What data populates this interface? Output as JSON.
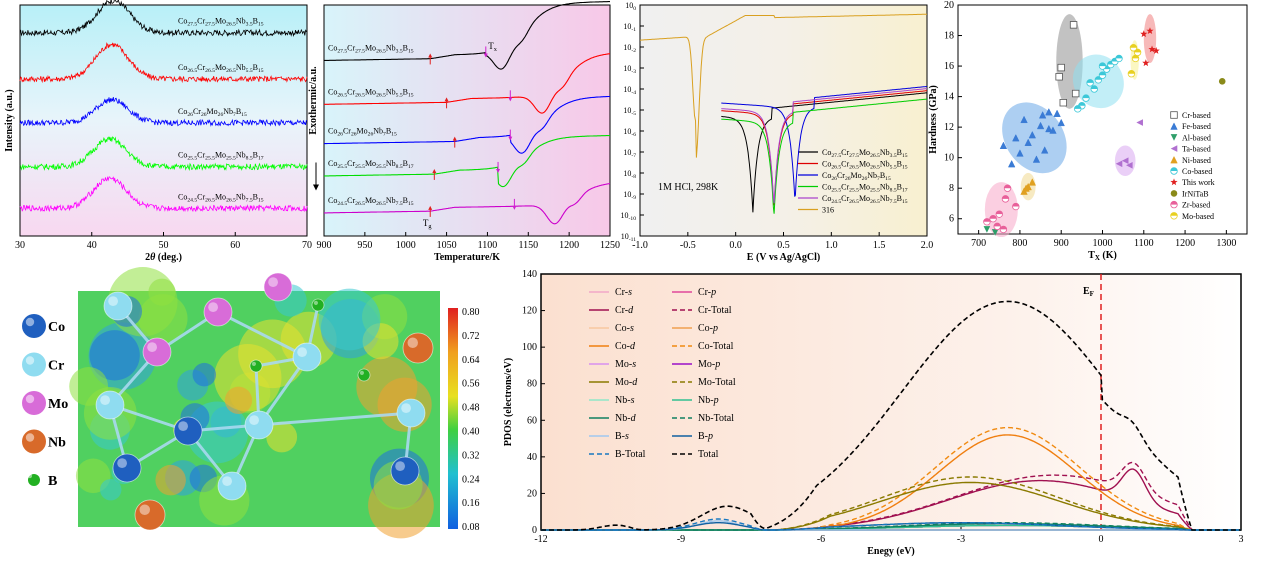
{
  "chart_data": [
    {
      "id": "xrd",
      "type": "line",
      "xlabel": "2θ (deg.)",
      "ylabel": "Intensity (a.u.)",
      "xlim": [
        30,
        70
      ],
      "xticks": [
        "30",
        "40",
        "50",
        "60",
        "70"
      ],
      "series": [
        {
          "name": "Co27.5Cr27.5Mo26.5Nb3.5B15",
          "label": [
            "Co",
            "27.5",
            "Cr",
            "27.5",
            "Mo",
            "26.5",
            "Nb",
            "3.5",
            "B",
            "15"
          ],
          "color": "#000000",
          "peak": 43,
          "base": 0.88,
          "amp": 0.14
        },
        {
          "name": "Co26.5Cr26.5Mo26.5Nb5.5B15",
          "label": [
            "Co",
            "26.5",
            "Cr",
            "26.5",
            "Mo",
            "26.5",
            "Nb",
            "5.5",
            "B",
            "15"
          ],
          "color": "#ff0000",
          "peak": 42.8,
          "base": 0.68,
          "amp": 0.15
        },
        {
          "name": "Co26Cr26Mo26Nb7B15",
          "label": [
            "Co",
            "26",
            "Cr",
            "26",
            "Mo",
            "26",
            "Nb",
            "7",
            "B",
            "15"
          ],
          "color": "#0000ff",
          "peak": 42.8,
          "base": 0.49,
          "amp": 0.1
        },
        {
          "name": "Co25.5Cr25.5Mo25.5Nb8.5B17",
          "label": [
            "Co",
            "25.5",
            "Cr",
            "25.5",
            "Mo",
            "25.5",
            "Nb",
            "8.5",
            "B",
            "17"
          ],
          "color": "#00ff00",
          "peak": 42.5,
          "base": 0.3,
          "amp": 0.12
        },
        {
          "name": "Co24.5Cr26.5Mo26.5Nb7.5B15",
          "label": [
            "Co",
            "24.5",
            "Cr",
            "26.5",
            "Mo",
            "26.5",
            "Nb",
            "7.5",
            "B",
            "15"
          ],
          "color": "#ff00ff",
          "peak": 42.5,
          "base": 0.12,
          "amp": 0.13
        }
      ]
    },
    {
      "id": "dsc",
      "type": "line",
      "xlabel": "Temperature/K",
      "ylabel": "Exothermic/a.u.",
      "xlim": [
        900,
        1250
      ],
      "xticks": [
        "900",
        "950",
        "1000",
        "1050",
        "1100",
        "1150",
        "1200",
        "1250"
      ],
      "annotations": {
        "tx": "T",
        "tx_sub": "x",
        "tg": "T",
        "tg_sub": "g"
      },
      "series": [
        {
          "name": "Co27.5Cr27.5Mo26.5Nb3.5B15",
          "label": [
            "Co",
            "27.5",
            "Cr",
            "27.5",
            "Mo",
            "26.5",
            "Nb",
            "3.5",
            "B",
            "15"
          ],
          "color": "#000000",
          "base": 0.76,
          "tg": 1030,
          "tx": 1098,
          "dip": 1118,
          "rise": 1250,
          "end": 0.98
        },
        {
          "name": "Co26.5Cr26.5Mo26.5Nb5.5B15",
          "label": [
            "Co",
            "26.5",
            "Cr",
            "26.5",
            "Mo",
            "26.5",
            "Nb",
            "5.5",
            "B",
            "15"
          ],
          "color": "#ff0000",
          "base": 0.57,
          "tg": 1050,
          "tx": 1128,
          "dip": 1168,
          "rise": 1250,
          "end": 0.76
        },
        {
          "name": "Co26Cr26Mo26Nb7B15",
          "label": [
            "Co",
            "26",
            "Cr",
            "26",
            "Mo",
            "26",
            "Nb",
            "7",
            "B",
            "15"
          ],
          "color": "#0000ff",
          "base": 0.4,
          "tg": 1060,
          "tx": 1128,
          "dip": 1143,
          "rise": 1250,
          "end": 0.57
        },
        {
          "name": "Co25.5Cr25.5Mo25.5Nb8.5B17",
          "label": [
            "Co",
            "25.5",
            "Cr",
            "25.5",
            "Mo",
            "25.5",
            "Nb",
            "8.5",
            "B",
            "17"
          ],
          "color": "#00dd00",
          "base": 0.26,
          "tg": 1035,
          "tx": 1113,
          "dip": 1120,
          "rise": 1250,
          "end": 0.4
        },
        {
          "name": "Co24.5Cr26.5Mo26.5Nb7.5B15",
          "label": [
            "Co",
            "24.5",
            "Cr",
            "26.5",
            "Mo",
            "26.5",
            "Nb",
            "7.5",
            "B",
            "15"
          ],
          "color": "#cc00cc",
          "base": 0.1,
          "tg": 1030,
          "tx": 1133,
          "dip": 1183,
          "rise": 1250,
          "end": 0.2
        }
      ]
    },
    {
      "id": "polarization",
      "type": "line",
      "xlabel": "E (V vs Ag/AgCl)",
      "ylabel": "",
      "xlim": [
        -1.0,
        2.0
      ],
      "xticks": [
        "-1.0",
        "-0.5",
        "0.0",
        "0.5",
        "1.0",
        "1.5",
        "2.0"
      ],
      "ylog": true,
      "ylim_exp": [
        -11,
        0
      ],
      "annotation": "1M HCl, 298K",
      "series": [
        {
          "name": "Co27.5Cr27.5Mo26.5Nb3.5B15",
          "label": [
            "Co",
            "27.5",
            "Cr",
            "27.5",
            "Mo",
            "26.5",
            "Nb",
            "3.5",
            "B",
            "15"
          ],
          "color": "#000000",
          "ecorr": 0.18,
          "ipass": -4.2
        },
        {
          "name": "Co26.5Cr26.5Mo26.5Nb5.5B15",
          "label": [
            "Co",
            "26.5",
            "Cr",
            "26.5",
            "Mo",
            "26.5",
            "Nb",
            "5.5",
            "B",
            "15"
          ],
          "color": "#dd0000",
          "ecorr": 0.4,
          "ipass": -4.0
        },
        {
          "name": "Co26Cr26Mo26Nb7B15",
          "label": [
            "Co",
            "26",
            "Cr",
            "26",
            "Mo",
            "26",
            "Nb",
            "7",
            "B",
            "15"
          ],
          "color": "#0000dd",
          "ecorr": 0.62,
          "ipass": -3.7
        },
        {
          "name": "Co25.5Cr25.5Mo25.5Nb8.5B17",
          "label": [
            "Co",
            "25.5",
            "Cr",
            "25.5",
            "Mo",
            "25.5",
            "Nb",
            "8.5",
            "B",
            "17"
          ],
          "color": "#00cc00",
          "ecorr": 0.4,
          "ipass": -4.4
        },
        {
          "name": "Co24.5Cr26.5Mo26.5Nb7.5B15",
          "label": [
            "Co",
            "24.5",
            "Cr",
            "26.5",
            "Mo",
            "26.5",
            "Nb",
            "7.5",
            "B",
            "15"
          ],
          "color": "#aa44cc",
          "ecorr": 0.4,
          "ipass": -3.9
        },
        {
          "name": "316",
          "label": [
            "316"
          ],
          "color": "#d9a020",
          "ecorr": -0.42,
          "ipass": -0.5
        }
      ]
    },
    {
      "id": "hardness",
      "type": "scatter",
      "xlabel": "T",
      "xlabel_sub": "X",
      "xlabel_unit": " (K)",
      "ylabel": "Hardness (GPa)",
      "xlim": [
        650,
        1350
      ],
      "ylim": [
        5,
        20
      ],
      "xticks": [
        "700",
        "800",
        "900",
        "1000",
        "1100",
        "1200",
        "1300"
      ],
      "yticks": [
        "6",
        "8",
        "10",
        "12",
        "14",
        "16",
        "18",
        "20"
      ],
      "series": [
        {
          "name": "Cr-based",
          "marker": "square",
          "color": "#555555",
          "points": [
            [
              930,
              18.7
            ],
            [
              895,
              15.3
            ],
            [
              905,
              13.6
            ],
            [
              935,
              14.2
            ],
            [
              900,
              15.9
            ]
          ]
        },
        {
          "name": "Fe-based",
          "marker": "triangle",
          "color": "#3a7bd5",
          "points": [
            [
              780,
              9.6
            ],
            [
              800,
              10.3
            ],
            [
              820,
              11.0
            ],
            [
              830,
              11.5
            ],
            [
              850,
              12.1
            ],
            [
              860,
              10.5
            ],
            [
              870,
              13.0
            ],
            [
              880,
              11.8
            ],
            [
              840,
              9.9
            ],
            [
              810,
              12.5
            ],
            [
              890,
              12.9
            ],
            [
              900,
              12.3
            ],
            [
              760,
              10.8
            ],
            [
              790,
              11.3
            ],
            [
              870,
              11.9
            ],
            [
              855,
              12.8
            ]
          ]
        },
        {
          "name": "Al-based",
          "marker": "triangle-down",
          "color": "#2e9e6a",
          "points": [
            [
              720,
              5.3
            ],
            [
              740,
              5.1
            ]
          ]
        },
        {
          "name": "Ta-based",
          "marker": "triangle-left",
          "color": "#b070d0",
          "points": [
            [
              1040,
              9.6
            ],
            [
              1055,
              9.8
            ],
            [
              1065,
              9.5
            ],
            [
              1090,
              12.3
            ]
          ]
        },
        {
          "name": "Ni-based",
          "marker": "triangle-up",
          "color": "#e0a020",
          "points": [
            [
              810,
              7.8
            ],
            [
              820,
              8.1
            ],
            [
              830,
              8.4
            ],
            [
              815,
              8.0
            ]
          ]
        },
        {
          "name": "Co-based",
          "marker": "halfcircle",
          "color": "#3cc8d8",
          "points": [
            [
              950,
              13.4
            ],
            [
              960,
              13.9
            ],
            [
              980,
              14.5
            ],
            [
              990,
              15.1
            ],
            [
              1000,
              15.4
            ],
            [
              1010,
              15.8
            ],
            [
              1020,
              16.1
            ],
            [
              1030,
              16.3
            ],
            [
              1040,
              16.5
            ],
            [
              970,
              14.9
            ],
            [
              1000,
              16.0
            ],
            [
              940,
              13.2
            ]
          ]
        },
        {
          "name": "This work",
          "marker": "star",
          "color": "#e02020",
          "points": [
            [
              1100,
              18.1
            ],
            [
              1115,
              18.3
            ],
            [
              1120,
              17.1
            ],
            [
              1130,
              17.0
            ],
            [
              1105,
              16.2
            ]
          ]
        },
        {
          "name": "IrNiTaB",
          "marker": "circle",
          "color": "#8a8a1a",
          "points": [
            [
              1290,
              15.0
            ]
          ]
        },
        {
          "name": "Zr-based",
          "marker": "halfcircle",
          "color": "#e8609a",
          "points": [
            [
              720,
              5.8
            ],
            [
              735,
              6.0
            ],
            [
              750,
              6.3
            ],
            [
              765,
              7.3
            ],
            [
              770,
              8.0
            ],
            [
              790,
              6.8
            ],
            [
              745,
              5.5
            ],
            [
              760,
              5.3
            ]
          ]
        },
        {
          "name": "Mo-based",
          "marker": "halfcircle",
          "color": "#e8d020",
          "points": [
            [
              1070,
              15.5
            ],
            [
              1080,
              16.5
            ],
            [
              1085,
              16.9
            ],
            [
              1075,
              17.2
            ]
          ]
        }
      ]
    },
    {
      "id": "elf",
      "type": "heatmap",
      "legend": [
        {
          "name": "Co",
          "color": "#1f5fbf"
        },
        {
          "name": "Cr",
          "color": "#8fdcf0"
        },
        {
          "name": "Mo",
          "color": "#d86cd8"
        },
        {
          "name": "Nb",
          "color": "#d86a2a"
        },
        {
          "name": "B",
          "color": "#22b022"
        }
      ],
      "colorbar_ticks": [
        "0.80",
        "0.72",
        "0.64",
        "0.56",
        "0.48",
        "0.40",
        "0.32",
        "0.24",
        "0.16",
        "0.08"
      ],
      "clim": [
        0.08,
        0.8
      ]
    },
    {
      "id": "pdos",
      "type": "line",
      "xlabel": "Enegy (eV)",
      "ylabel": "PDOS (electrons/eV)",
      "xlim": [
        -12,
        3
      ],
      "ylim": [
        0,
        140
      ],
      "xticks": [
        "-12",
        "-9",
        "-6",
        "-3",
        "0",
        "3"
      ],
      "yticks": [
        "0",
        "20",
        "40",
        "60",
        "80",
        "100",
        "120",
        "140"
      ],
      "fermi_label": "E",
      "fermi_sub": "F",
      "series": [
        {
          "name": "Cr-s",
          "el": "Cr",
          "orb": "s",
          "color": "#f2a7c8",
          "dash": false
        },
        {
          "name": "Cr-p",
          "el": "Cr",
          "orb": "p",
          "color": "#e0489a",
          "dash": false
        },
        {
          "name": "Cr-d",
          "el": "Cr",
          "orb": "d",
          "color": "#a01050",
          "dash": false
        },
        {
          "name": "Cr-Total",
          "el": "Cr",
          "orb": "Total",
          "color": "#a01050",
          "dash": true
        },
        {
          "name": "Co-s",
          "el": "Co",
          "orb": "s",
          "color": "#f8c8a0",
          "dash": false
        },
        {
          "name": "Co-p",
          "el": "Co",
          "orb": "p",
          "color": "#f0a050",
          "dash": false
        },
        {
          "name": "Co-d",
          "el": "Co",
          "orb": "d",
          "color": "#f07f10",
          "dash": false
        },
        {
          "name": "Co-Total",
          "el": "Co",
          "orb": "Total",
          "color": "#f08a10",
          "dash": true
        },
        {
          "name": "Mo-s",
          "el": "Mo",
          "orb": "s",
          "color": "#d890f0",
          "dash": false
        },
        {
          "name": "Mo-p",
          "el": "Mo",
          "orb": "p",
          "color": "#9a10c8",
          "dash": false
        },
        {
          "name": "Mo-d",
          "el": "Mo",
          "orb": "d",
          "color": "#8a7a00",
          "dash": false
        },
        {
          "name": "Mo-Total",
          "el": "Mo",
          "orb": "Total",
          "color": "#8a7a00",
          "dash": true
        },
        {
          "name": "Nb-s",
          "el": "Nb",
          "orb": "s",
          "color": "#90e8c8",
          "dash": false
        },
        {
          "name": "Nb-p",
          "el": "Nb",
          "orb": "p",
          "color": "#30c090",
          "dash": false
        },
        {
          "name": "Nb-d",
          "el": "Nb",
          "orb": "d",
          "color": "#108060",
          "dash": false
        },
        {
          "name": "Nb-Total",
          "el": "Nb",
          "orb": "Total",
          "color": "#108060",
          "dash": true
        },
        {
          "name": "B-s",
          "el": "B",
          "orb": "s",
          "color": "#a0c8f0",
          "dash": false
        },
        {
          "name": "B-p",
          "el": "B",
          "orb": "p",
          "color": "#1060a0",
          "dash": false
        },
        {
          "name": "B-Total",
          "el": "B",
          "orb": "Total",
          "color": "#1878c0",
          "dash": true
        },
        {
          "name": "Total",
          "el": "",
          "orb": "Total",
          "color": "#000000",
          "dash": true
        }
      ]
    }
  ]
}
